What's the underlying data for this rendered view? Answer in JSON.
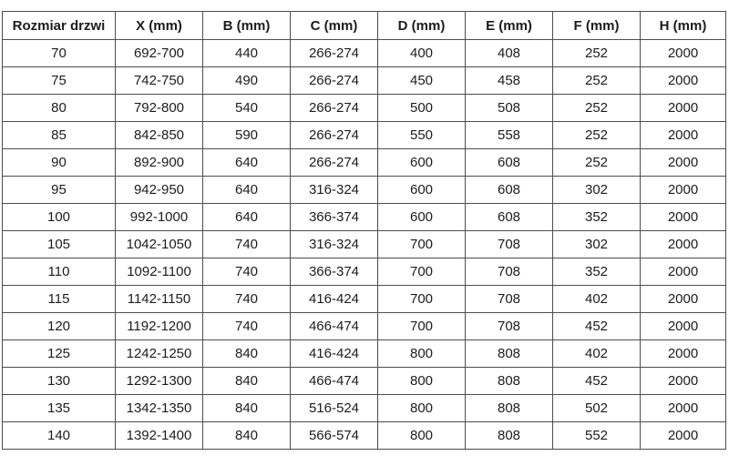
{
  "table": {
    "headers": [
      "Rozmiar drzwi",
      "X (mm)",
      "B (mm)",
      "C (mm)",
      "D (mm)",
      "E (mm)",
      "F (mm)",
      "H (mm)"
    ],
    "rows": [
      [
        "70",
        "692-700",
        "440",
        "266-274",
        "400",
        "408",
        "252",
        "2000"
      ],
      [
        "75",
        "742-750",
        "490",
        "266-274",
        "450",
        "458",
        "252",
        "2000"
      ],
      [
        "80",
        "792-800",
        "540",
        "266-274",
        "500",
        "508",
        "252",
        "2000"
      ],
      [
        "85",
        "842-850",
        "590",
        "266-274",
        "550",
        "558",
        "252",
        "2000"
      ],
      [
        "90",
        "892-900",
        "640",
        "266-274",
        "600",
        "608",
        "252",
        "2000"
      ],
      [
        "95",
        "942-950",
        "640",
        "316-324",
        "600",
        "608",
        "302",
        "2000"
      ],
      [
        "100",
        "992-1000",
        "640",
        "366-374",
        "600",
        "608",
        "352",
        "2000"
      ],
      [
        "105",
        "1042-1050",
        "740",
        "316-324",
        "700",
        "708",
        "302",
        "2000"
      ],
      [
        "110",
        "1092-1100",
        "740",
        "366-374",
        "700",
        "708",
        "352",
        "2000"
      ],
      [
        "115",
        "1142-1150",
        "740",
        "416-424",
        "700",
        "708",
        "402",
        "2000"
      ],
      [
        "120",
        "1192-1200",
        "740",
        "466-474",
        "700",
        "708",
        "452",
        "2000"
      ],
      [
        "125",
        "1242-1250",
        "840",
        "416-424",
        "800",
        "808",
        "402",
        "2000"
      ],
      [
        "130",
        "1292-1300",
        "840",
        "466-474",
        "800",
        "808",
        "452",
        "2000"
      ],
      [
        "135",
        "1342-1350",
        "840",
        "516-524",
        "800",
        "808",
        "502",
        "2000"
      ],
      [
        "140",
        "1392-1400",
        "840",
        "566-574",
        "800",
        "808",
        "552",
        "2000"
      ]
    ]
  },
  "colors": {
    "border": "#4d4d4d",
    "text": "#1c1c1c",
    "background": "#ffffff"
  }
}
